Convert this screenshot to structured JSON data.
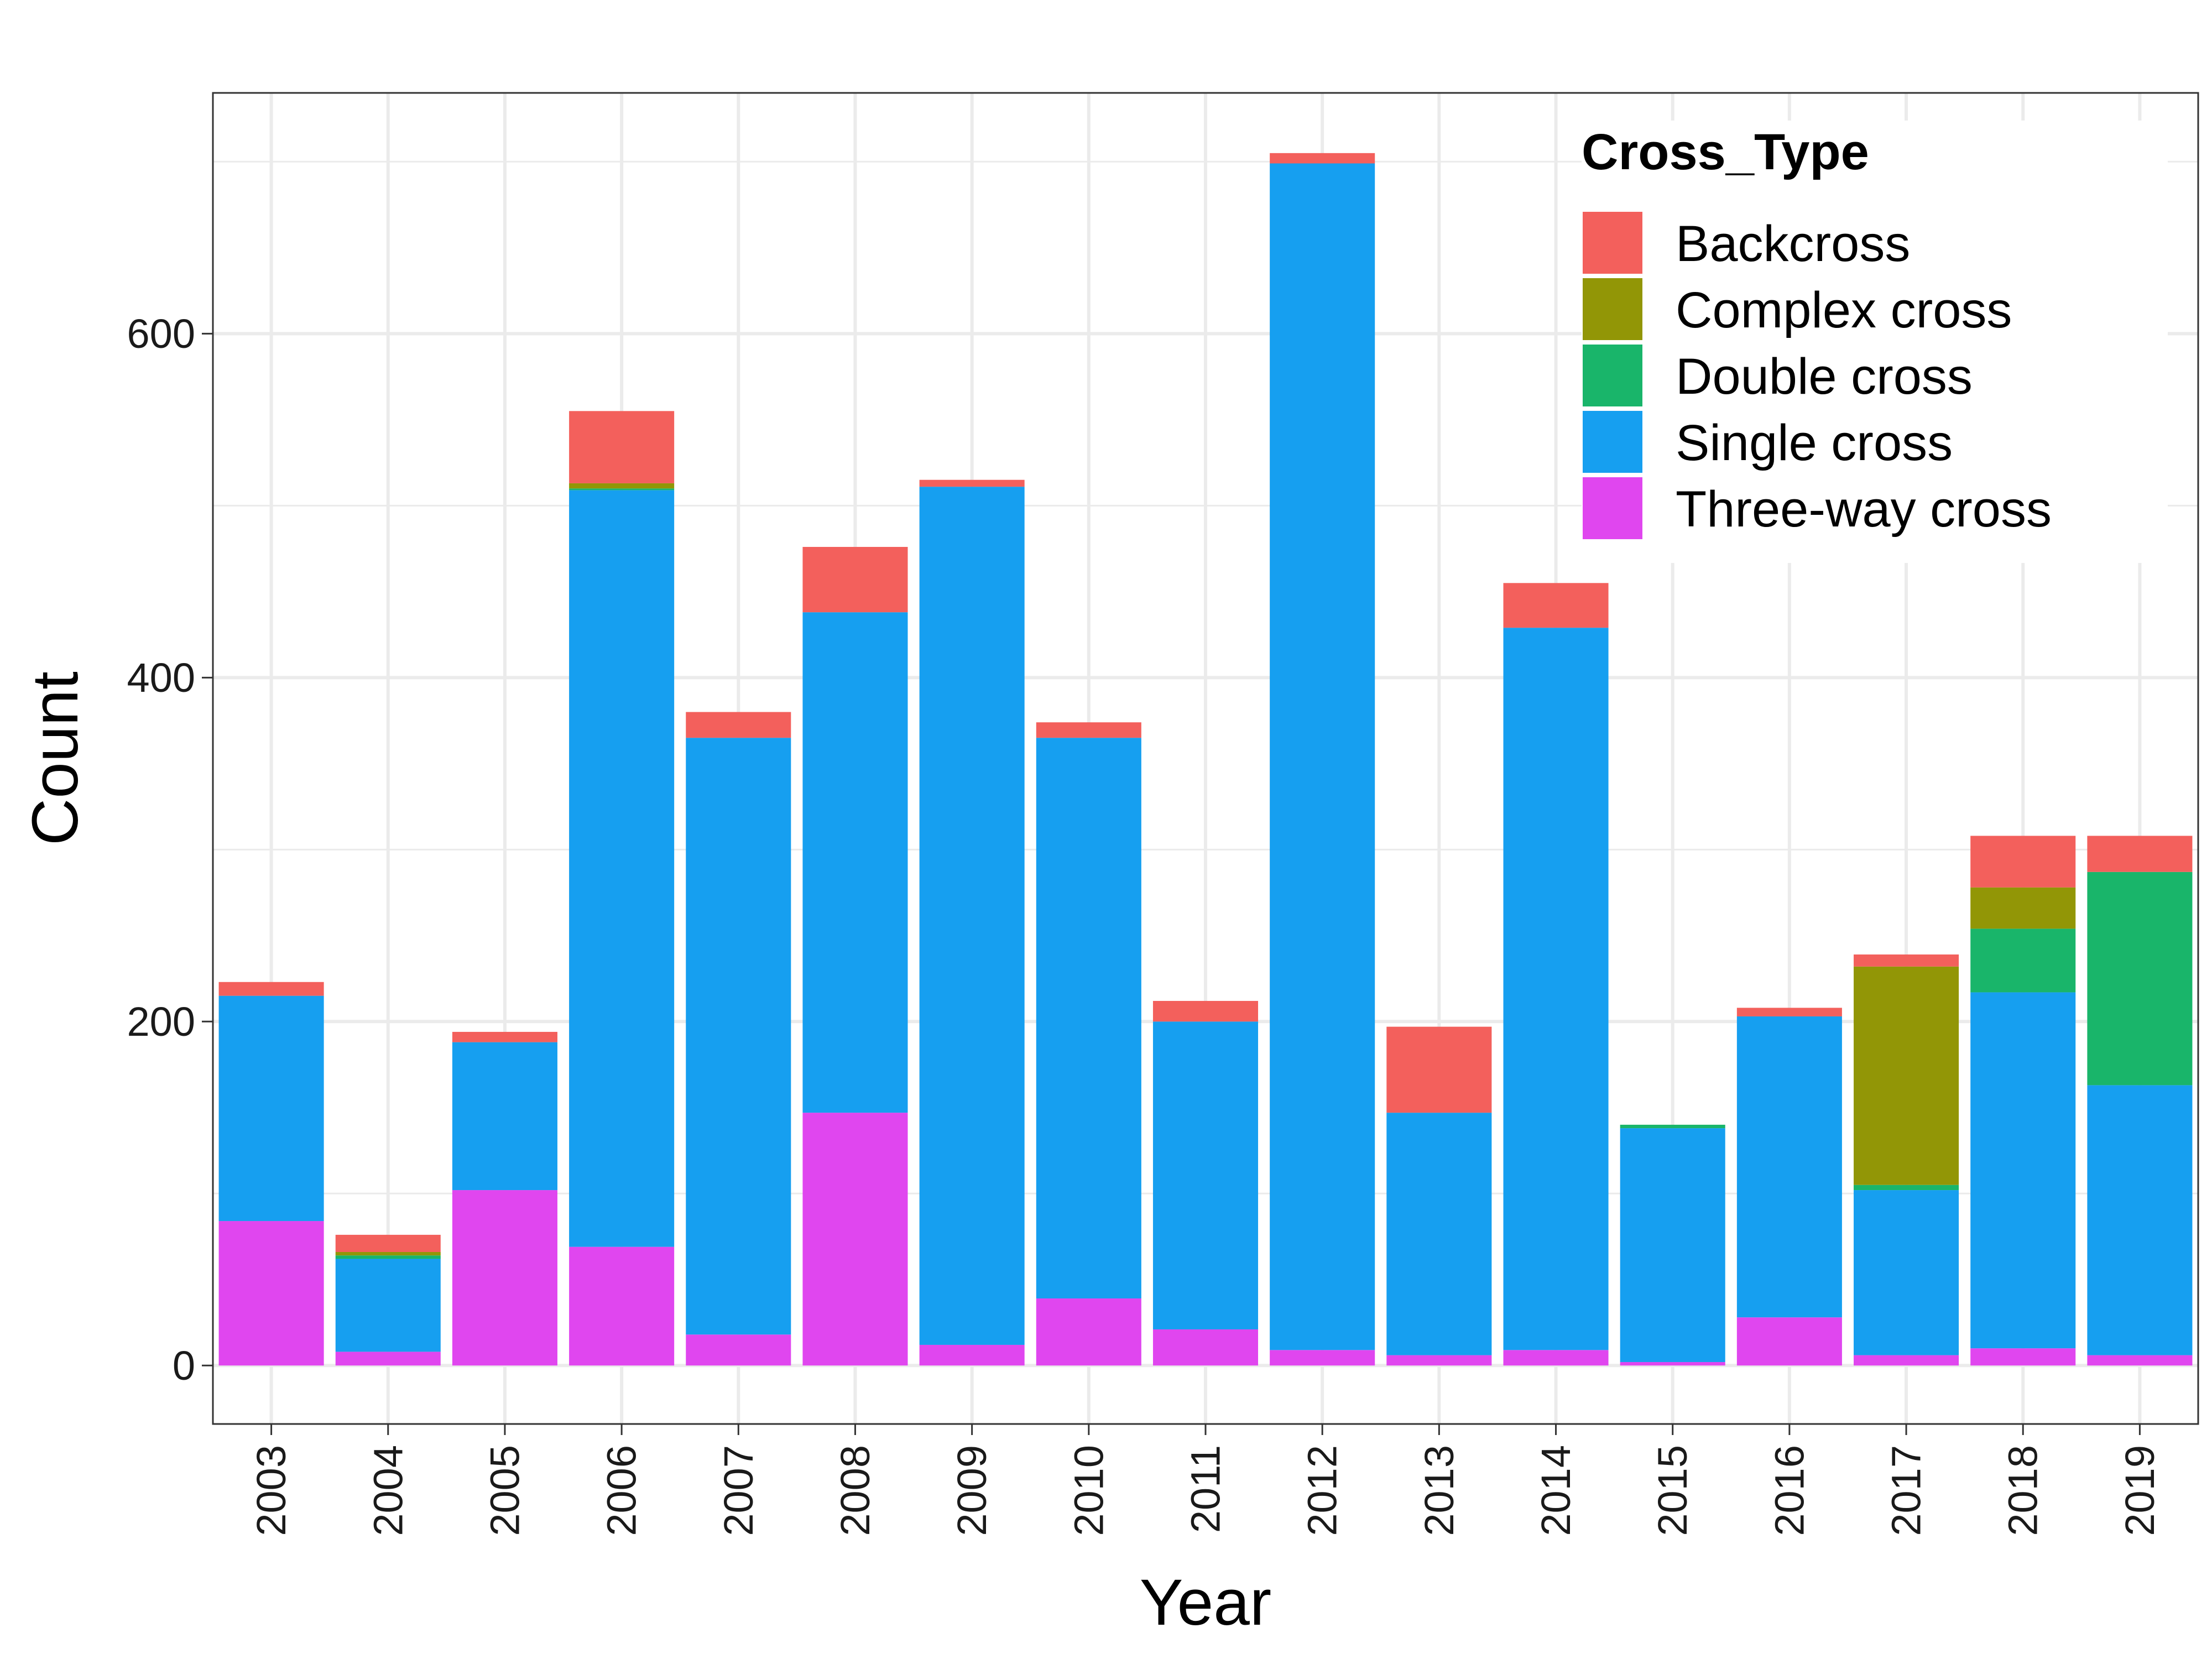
{
  "chart_data": {
    "type": "bar",
    "stacked": true,
    "xlabel": "Year",
    "ylabel": "Count",
    "ylim": [
      -34,
      740
    ],
    "yticks": [
      0,
      200,
      400,
      600
    ],
    "grid": true,
    "legend_position": "top-right",
    "legend_title": "Cross_Type",
    "categories": [
      "2003",
      "2004",
      "2005",
      "2006",
      "2007",
      "2008",
      "2009",
      "2010",
      "2011",
      "2012",
      "2013",
      "2014",
      "2015",
      "2016",
      "2017",
      "2018",
      "2019"
    ],
    "series": [
      {
        "name": "Three-way cross",
        "color": "#E046EF",
        "values": [
          84,
          8,
          102,
          69,
          18,
          147,
          12,
          39,
          21,
          9,
          6,
          9,
          2,
          28,
          6,
          10,
          6
        ]
      },
      {
        "name": "Single cross",
        "color": "#169FF0",
        "values": [
          131,
          54,
          86,
          440,
          347,
          291,
          499,
          326,
          179,
          690,
          141,
          420,
          136,
          175,
          96,
          207,
          157
        ]
      },
      {
        "name": "Double cross",
        "color": "#19B56A",
        "values": [
          0,
          2,
          0,
          1,
          0,
          0,
          0,
          0,
          0,
          0,
          0,
          0,
          2,
          0,
          3,
          37,
          124
        ]
      },
      {
        "name": "Complex cross",
        "color": "#929606",
        "values": [
          0,
          2,
          0,
          3,
          0,
          0,
          0,
          0,
          0,
          0,
          0,
          0,
          0,
          0,
          127,
          24,
          0
        ]
      },
      {
        "name": "Backcross",
        "color": "#F3605C",
        "values": [
          8,
          10,
          6,
          42,
          15,
          38,
          4,
          9,
          12,
          6,
          50,
          26,
          0,
          5,
          7,
          30,
          21
        ]
      }
    ]
  }
}
